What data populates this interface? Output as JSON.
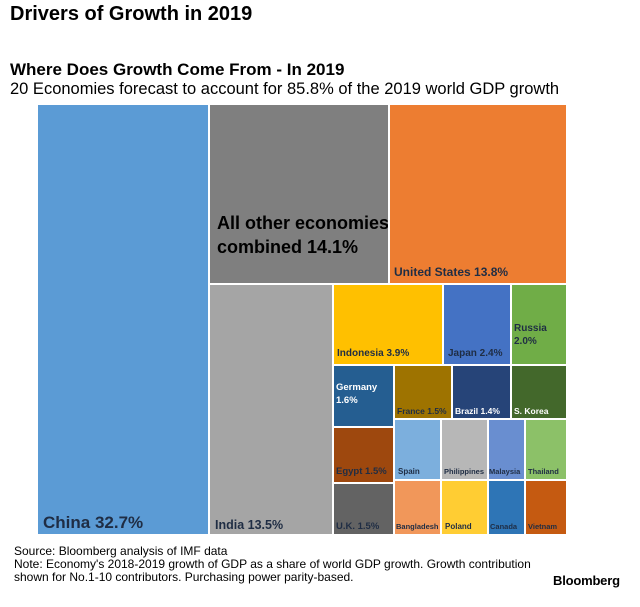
{
  "header": {
    "title": "Drivers of Growth in 2019"
  },
  "chart_data": {
    "type": "treemap",
    "title": "Where Does Growth Come From - In 2019",
    "subtitle": "20 Economies forecast to account for 85.8% of the 2019 world GDP growth",
    "items": [
      {
        "name": "China",
        "value": 32.7,
        "label": "China 32.7%",
        "color": "#5b9bd5",
        "text_color": "#1f2d44",
        "display": "large"
      },
      {
        "name": "All other economies combined",
        "value": 14.1,
        "label": "All other economies combined 14.1%",
        "color": "#7f7f7f",
        "text_color": "#000000",
        "display": "large"
      },
      {
        "name": "United States",
        "value": 13.8,
        "label": "United States 13.8%",
        "color": "#ed7d31",
        "text_color": "#1f2d44",
        "display": "medium"
      },
      {
        "name": "India",
        "value": 13.5,
        "label": "India 13.5%",
        "color": "#a5a5a5",
        "text_color": "#1f2d44",
        "display": "medium"
      },
      {
        "name": "Indonesia",
        "value": 3.9,
        "label": "Indonesia 3.9%",
        "color": "#ffc000",
        "text_color": "#1f2d44",
        "display": "small"
      },
      {
        "name": "Japan",
        "value": 2.4,
        "label": "Japan 2.4%",
        "color": "#4472c4",
        "text_color": "#1f2d44",
        "display": "small"
      },
      {
        "name": "Russia",
        "value": 2.0,
        "label": "Russia 2.0%",
        "color": "#70ad47",
        "text_color": "#1f2d44",
        "display": "small"
      },
      {
        "name": "Germany",
        "value": 1.6,
        "label": "Germany 1.6%",
        "color": "#255e91",
        "text_color": "#ffffff",
        "display": "small"
      },
      {
        "name": "France",
        "value": 1.5,
        "label": "France 1.5%",
        "color": "#9e7300",
        "text_color": "#1f2d44",
        "display": "tiny"
      },
      {
        "name": "Brazil",
        "value": 1.4,
        "label": "Brazil 1.4%",
        "color": "#264478",
        "text_color": "#ffffff",
        "display": "tiny"
      },
      {
        "name": "S. Korea",
        "value": null,
        "label": "S. Korea",
        "color": "#43682b",
        "text_color": "#ffffff",
        "display": "tiny"
      },
      {
        "name": "Egypt",
        "value": 1.5,
        "label": "Egypt 1.5%",
        "color": "#9e480e",
        "text_color": "#1f2d44",
        "display": "small"
      },
      {
        "name": "U.K.",
        "value": 1.5,
        "label": "U.K. 1.5%",
        "color": "#636363",
        "text_color": "#1f2d44",
        "display": "small"
      },
      {
        "name": "Spain",
        "value": null,
        "label": "Spain",
        "color": "#7cafdd",
        "text_color": "#1f2d44",
        "display": "tiny"
      },
      {
        "name": "Philippines",
        "value": null,
        "label": "Philippines",
        "color": "#b7b7b7",
        "text_color": "#1f2d44",
        "display": "tiny"
      },
      {
        "name": "Malaysia",
        "value": null,
        "label": "Malaysia",
        "color": "#698ed0",
        "text_color": "#1f2d44",
        "display": "tiny"
      },
      {
        "name": "Thailand",
        "value": null,
        "label": "Thailand",
        "color": "#8cc168",
        "text_color": "#1f2d44",
        "display": "tiny"
      },
      {
        "name": "Bangladesh",
        "value": null,
        "label": "Bangladesh",
        "color": "#f1975a",
        "text_color": "#1f2d44",
        "display": "tiny"
      },
      {
        "name": "Poland",
        "value": null,
        "label": "Poland",
        "color": "#ffcd33",
        "text_color": "#1f2d44",
        "display": "tiny"
      },
      {
        "name": "Canada",
        "value": null,
        "label": "Canada",
        "color": "#2e75b6",
        "text_color": "#1f2d44",
        "display": "tiny"
      },
      {
        "name": "Vietnam",
        "value": null,
        "label": "Vietnam",
        "color": "#c55a11",
        "text_color": "#1f2d44",
        "display": "tiny"
      }
    ]
  },
  "footer": {
    "source": "Source: Bloomberg analysis of IMF data",
    "note": "Note: Economy's 2018-2019 growth of GDP as a share of world GDP growth. Growth contribution shown for No.1-10 contributors. Purchasing power parity-based.",
    "brand": "Bloomberg"
  }
}
